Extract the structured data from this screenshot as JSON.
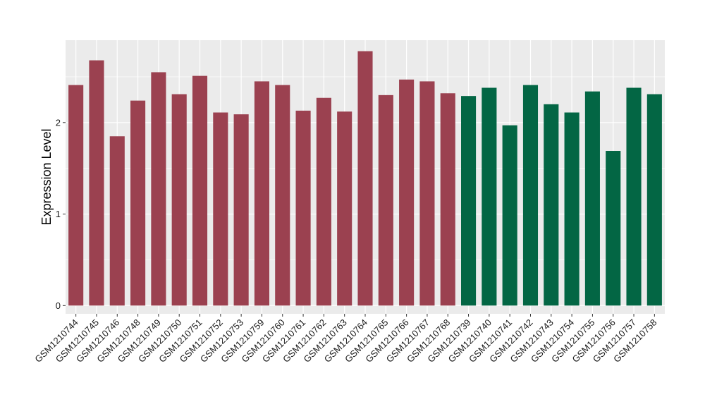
{
  "chart_data": {
    "type": "bar",
    "title": "",
    "xlabel": "",
    "ylabel": "Expression Level",
    "ylim": [
      -0.09,
      2.9
    ],
    "yticks": [
      0,
      1,
      2
    ],
    "grid": true,
    "legend": "none",
    "colors": {
      "group_a": "#9b4150",
      "group_b": "#036644",
      "panel": "#ebebeb",
      "gridline": "#ffffff"
    },
    "categories": [
      "GSM1210744",
      "GSM1210745",
      "GSM1210746",
      "GSM1210748",
      "GSM1210749",
      "GSM1210750",
      "GSM1210751",
      "GSM1210752",
      "GSM1210753",
      "GSM1210759",
      "GSM1210760",
      "GSM1210761",
      "GSM1210762",
      "GSM1210763",
      "GSM1210764",
      "GSM1210765",
      "GSM1210766",
      "GSM1210767",
      "GSM1210768",
      "GSM1210739",
      "GSM1210740",
      "GSM1210741",
      "GSM1210742",
      "GSM1210743",
      "GSM1210754",
      "GSM1210755",
      "GSM1210756",
      "GSM1210757",
      "GSM1210758"
    ],
    "values": [
      2.41,
      2.68,
      1.85,
      2.24,
      2.55,
      2.31,
      2.51,
      2.11,
      2.09,
      2.45,
      2.41,
      2.13,
      2.27,
      2.12,
      2.78,
      2.3,
      2.47,
      2.45,
      2.32,
      2.29,
      2.38,
      1.97,
      2.41,
      2.2,
      2.11,
      2.34,
      1.69,
      2.38,
      2.31
    ],
    "groups": [
      "a",
      "a",
      "a",
      "a",
      "a",
      "a",
      "a",
      "a",
      "a",
      "a",
      "a",
      "a",
      "a",
      "a",
      "a",
      "a",
      "a",
      "a",
      "a",
      "b",
      "b",
      "b",
      "b",
      "b",
      "b",
      "b",
      "b",
      "b",
      "b"
    ]
  }
}
